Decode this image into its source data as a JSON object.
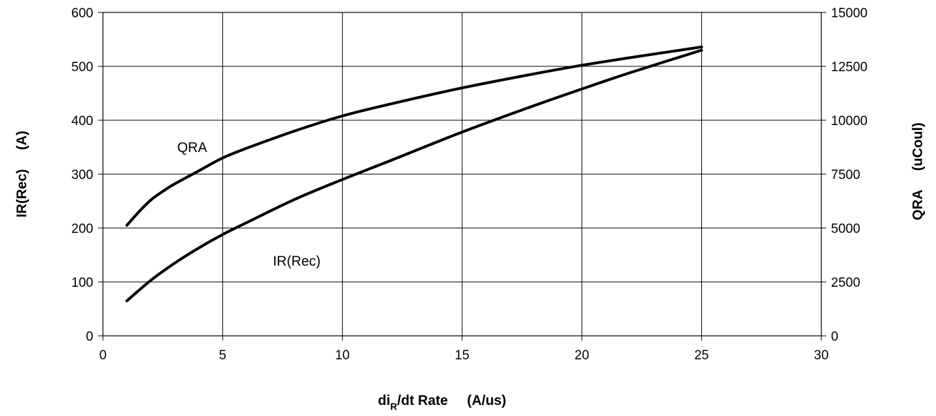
{
  "chart_data": {
    "type": "line",
    "xlabel": "di",
    "xlabel_sub": "R",
    "xlabel_rest": "/dt Rate     (A/us)",
    "ylabel_left": "IR(Rec)     (A)",
    "ylabel_right": "QRA     (uCoul)",
    "xlim": [
      0,
      30
    ],
    "ylim_left": [
      0,
      600
    ],
    "ylim_right": [
      0,
      15000
    ],
    "x_ticks": [
      "0",
      "5",
      "10",
      "15",
      "20",
      "25",
      "30"
    ],
    "y_left_ticks": [
      "0",
      "100",
      "200",
      "300",
      "400",
      "500",
      "600"
    ],
    "y_right_ticks": [
      "0",
      "2500",
      "5000",
      "7500",
      "10000",
      "12500",
      "15000"
    ],
    "grid": true,
    "series": [
      {
        "name": "QRA",
        "axis": "right",
        "x": [
          1,
          1.5,
          2,
          2.5,
          3,
          4,
          5,
          6,
          8,
          10,
          12,
          15,
          18,
          20,
          22,
          25
        ],
        "y": [
          5125,
          5750,
          6300,
          6700,
          7050,
          7650,
          8250,
          8700,
          9500,
          10200,
          10750,
          11500,
          12150,
          12550,
          12900,
          13400
        ]
      },
      {
        "name": "IR(Rec)",
        "axis": "left",
        "x": [
          1,
          2,
          3,
          4,
          5,
          6,
          8,
          10,
          12,
          15,
          18,
          20,
          22,
          25
        ],
        "y": [
          65,
          103,
          135,
          163,
          188,
          210,
          253,
          290,
          325,
          378,
          427,
          458,
          488,
          530
        ]
      }
    ],
    "annotations": [
      {
        "text": "QRA",
        "x": 3.1,
        "y": 341
      },
      {
        "text": "IR(Rec)",
        "x": 7.1,
        "y": 130
      }
    ]
  }
}
